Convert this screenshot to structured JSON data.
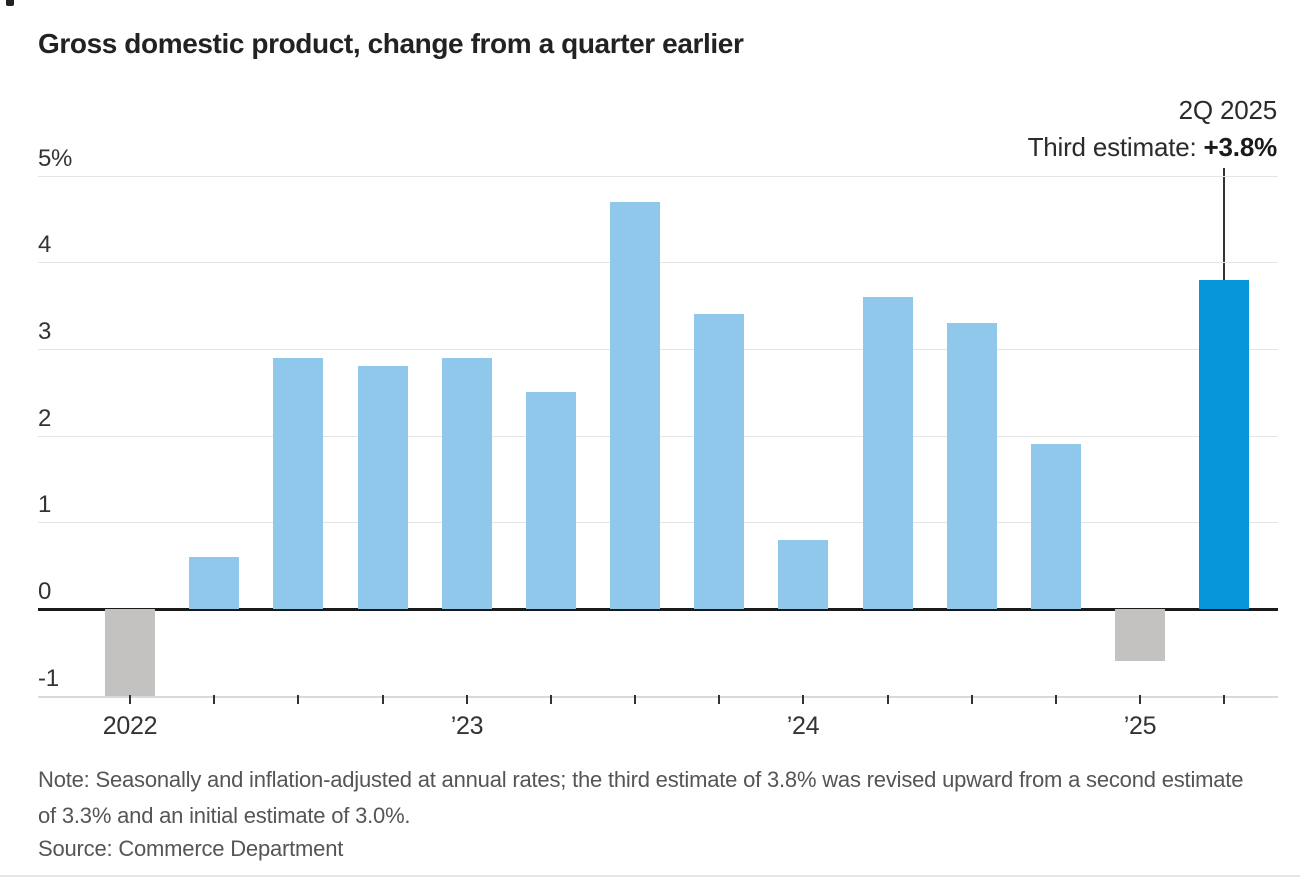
{
  "title": "Gross domestic product, change from a quarter earlier",
  "annotation": {
    "line1": "2Q 2025",
    "line2_prefix": "Third estimate: ",
    "line2_value": "+3.8%"
  },
  "chart_data": {
    "type": "bar",
    "categories": [
      "2022 Q1",
      "2022 Q2",
      "2022 Q3",
      "2022 Q4",
      "2023 Q1",
      "2023 Q2",
      "2023 Q3",
      "2023 Q4",
      "2024 Q1",
      "2024 Q2",
      "2024 Q3",
      "2024 Q4",
      "2025 Q1",
      "2025 Q2"
    ],
    "values": [
      -1.0,
      0.6,
      2.9,
      2.8,
      2.9,
      2.5,
      4.7,
      3.4,
      0.8,
      3.6,
      3.3,
      1.9,
      -0.6,
      3.8
    ],
    "bar_styles": [
      "gray",
      "light",
      "light",
      "light",
      "light",
      "light",
      "light",
      "light",
      "light",
      "light",
      "light",
      "light",
      "gray",
      "dark"
    ],
    "title": "Gross domestic product, change from a quarter earlier",
    "xlabel": "",
    "ylabel": "",
    "ylim": [
      -1,
      5
    ],
    "grid": true,
    "y_ticks": [
      {
        "label": "5%",
        "value": 5
      },
      {
        "label": "4",
        "value": 4
      },
      {
        "label": "3",
        "value": 3
      },
      {
        "label": "2",
        "value": 2
      },
      {
        "label": "1",
        "value": 1
      },
      {
        "label": "0",
        "value": 0
      },
      {
        "label": "-1",
        "value": -1
      }
    ],
    "x_year_labels": [
      {
        "index": 0,
        "label": "2022"
      },
      {
        "index": 4,
        "label": "’23"
      },
      {
        "index": 8,
        "label": "’24"
      },
      {
        "index": 12,
        "label": "’25"
      }
    ],
    "colors": {
      "light": "#90C8EB",
      "dark": "#0697DA",
      "gray": "#C3C2C0",
      "grid": "#E4E4E4",
      "zero": "#1A1A1A",
      "axis": "#D9D9D9",
      "tick": "#333333"
    },
    "annotation_text": "2Q 2025 Third estimate: +3.8%"
  },
  "note": {
    "text": "Note: Seasonally and inflation-adjusted at annual rates; the third estimate of 3.8% was revised upward from a second estimate of 3.3% and an initial estimate of 3.0%."
  },
  "source": "Source: Commerce Department"
}
